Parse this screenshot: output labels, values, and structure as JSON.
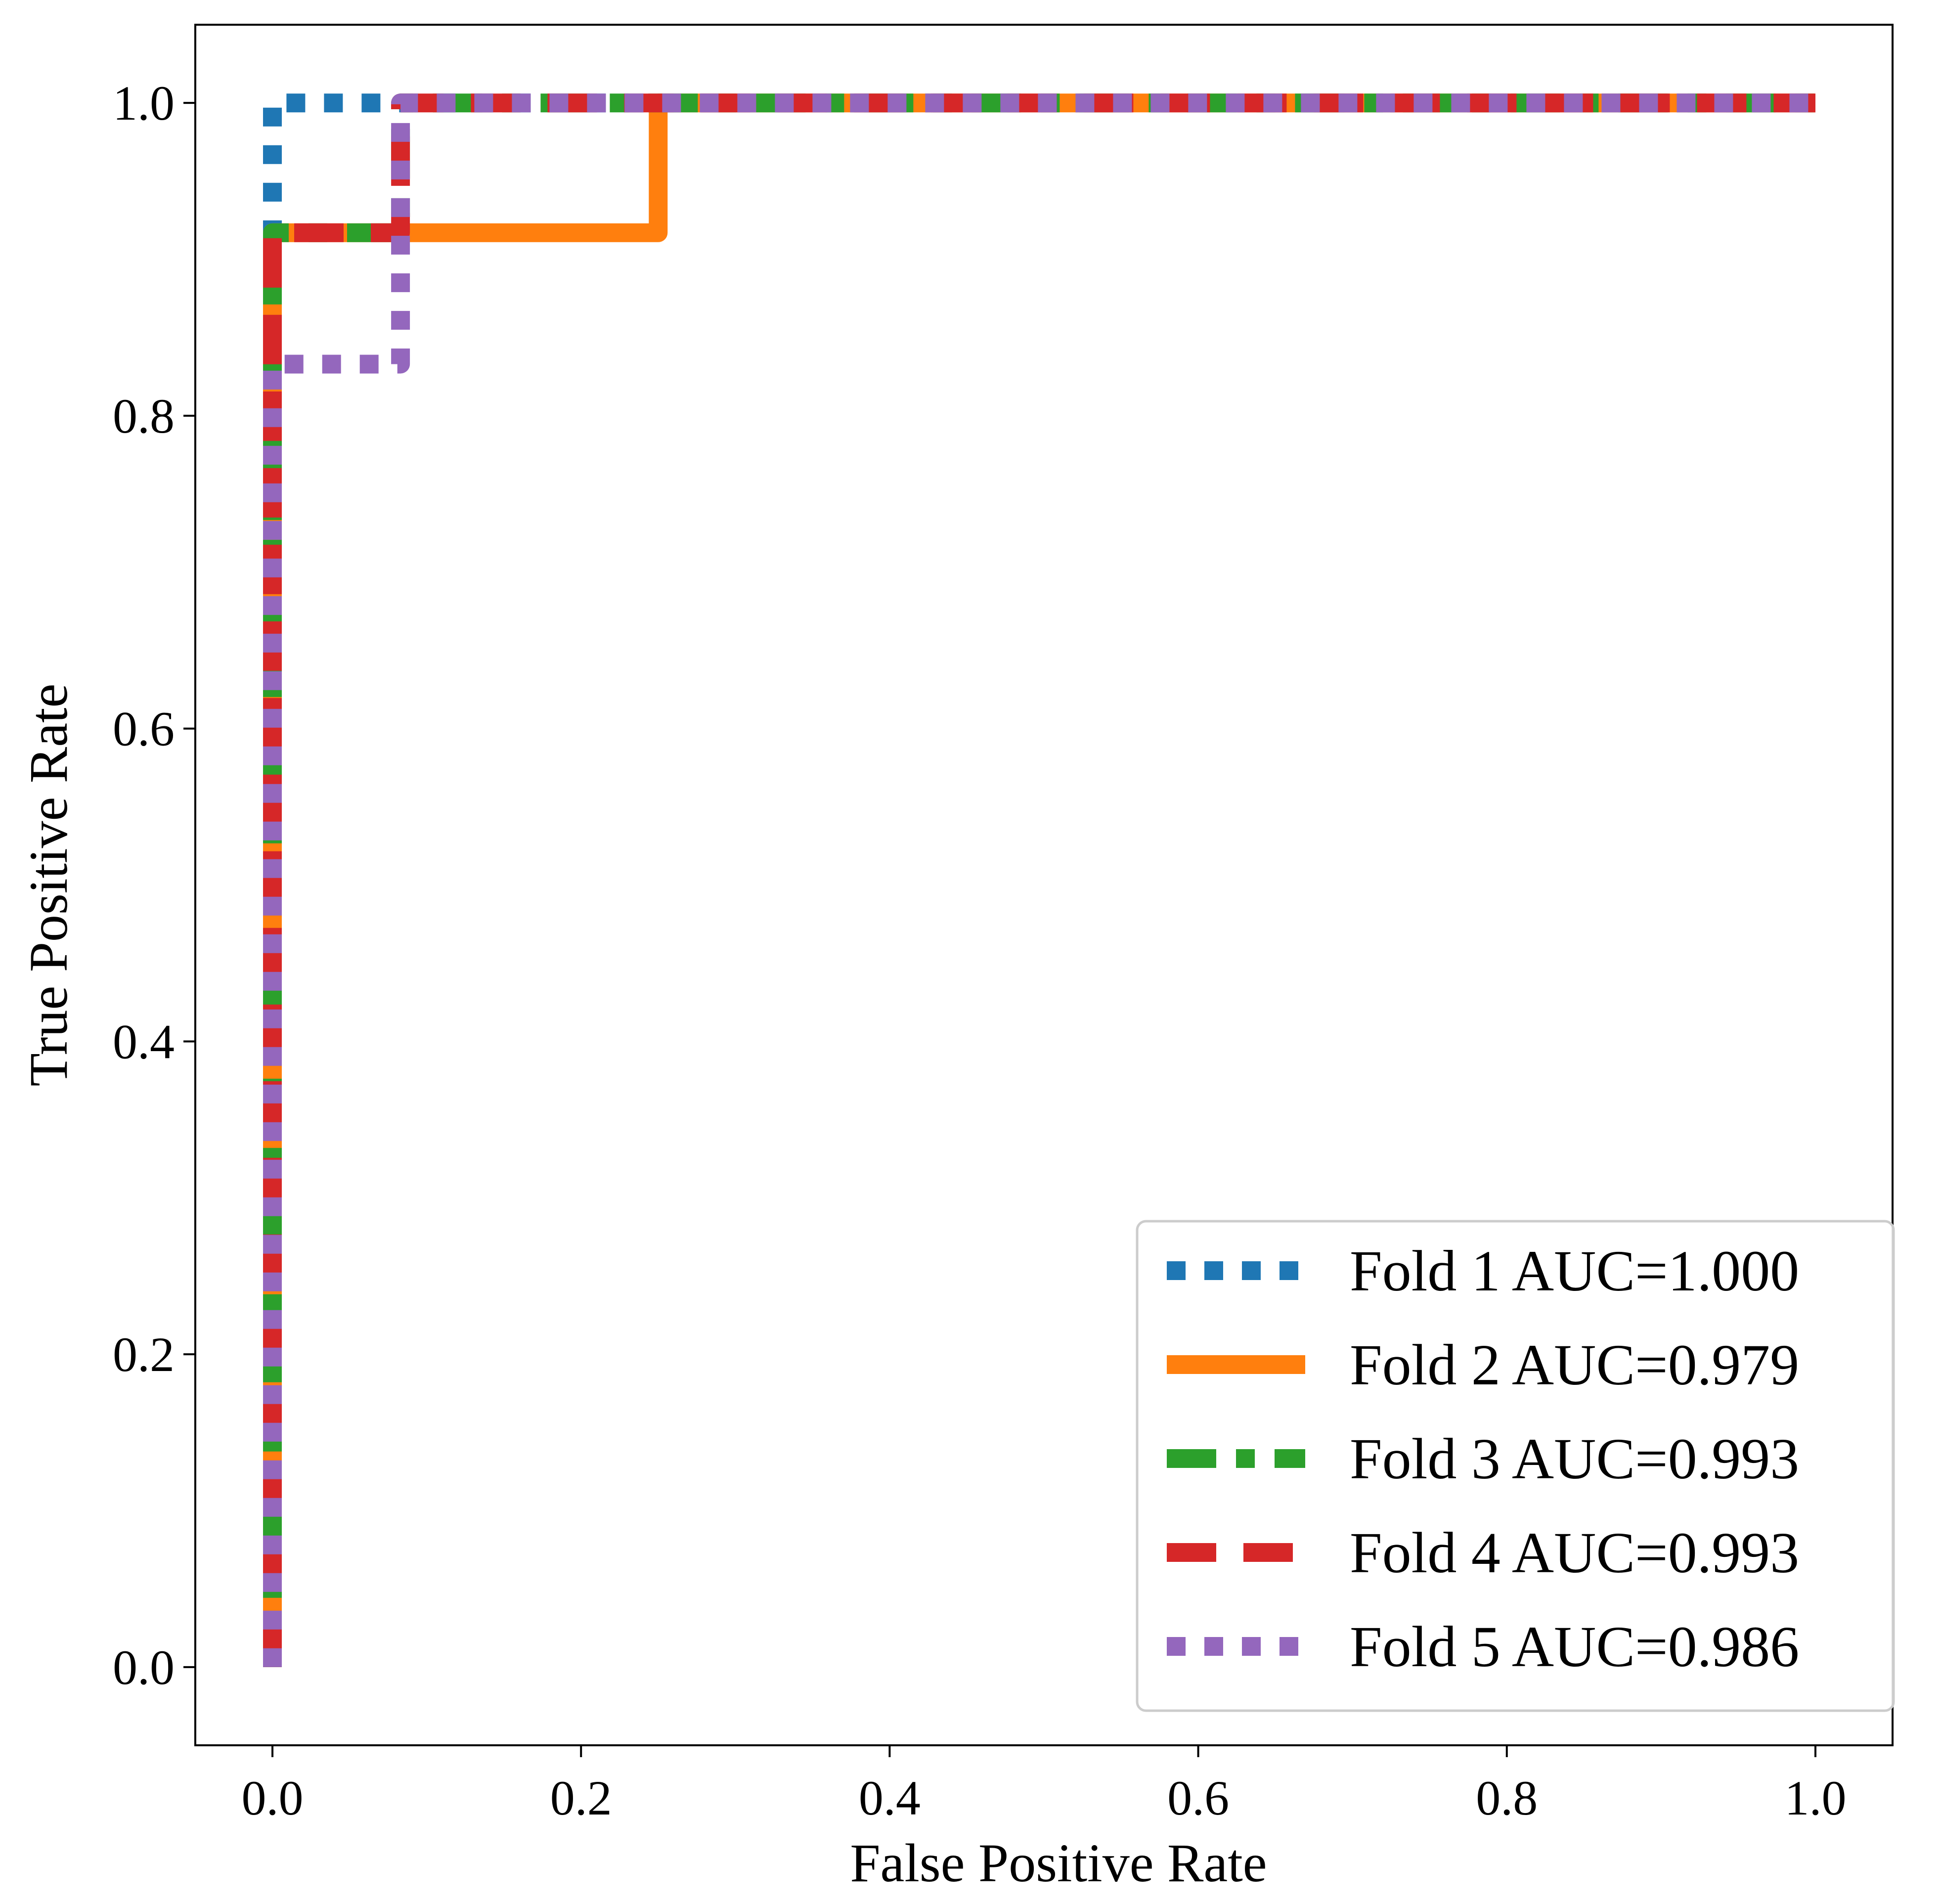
{
  "chart_data": {
    "type": "line",
    "title": "",
    "xlabel": "False Positive Rate",
    "ylabel": "True Positive Rate",
    "xlim": [
      -0.05,
      1.05
    ],
    "ylim": [
      -0.05,
      1.05
    ],
    "xticks": [
      0.0,
      0.2,
      0.4,
      0.6,
      0.8,
      1.0
    ],
    "yticks": [
      0.0,
      0.2,
      0.4,
      0.6,
      0.8,
      1.0
    ],
    "xtick_labels": [
      "0.0",
      "0.2",
      "0.4",
      "0.6",
      "0.8",
      "1.0"
    ],
    "ytick_labels": [
      "0.0",
      "0.2",
      "0.4",
      "0.6",
      "0.8",
      "1.0"
    ],
    "grid": false,
    "legend_position": "lower-right",
    "series": [
      {
        "name": "Fold 1 AUC=1.000",
        "color": "#1f77b4",
        "line_style": "dotted",
        "x": [
          0.0,
          0.0,
          0.0,
          1.0
        ],
        "y": [
          0.0,
          0.0,
          1.0,
          1.0
        ]
      },
      {
        "name": "Fold 2 AUC=0.979",
        "color": "#ff7f0e",
        "line_style": "solid",
        "x": [
          0.0,
          0.0,
          0.25,
          0.25,
          1.0
        ],
        "y": [
          0.0,
          0.917,
          0.917,
          1.0,
          1.0
        ]
      },
      {
        "name": "Fold 3 AUC=0.993",
        "color": "#2ca02c",
        "line_style": "dashdot",
        "x": [
          0.0,
          0.0,
          0.083,
          0.083,
          1.0
        ],
        "y": [
          0.0,
          0.917,
          0.917,
          1.0,
          1.0
        ]
      },
      {
        "name": "Fold 4 AUC=0.993",
        "color": "#d62728",
        "line_style": "dashed",
        "x": [
          0.0,
          0.0,
          0.083,
          0.083,
          1.0
        ],
        "y": [
          0.0,
          0.917,
          0.917,
          1.0,
          1.0
        ]
      },
      {
        "name": "Fold 5 AUC=0.986",
        "color": "#9467bd",
        "line_style": "dotted",
        "x": [
          0.0,
          0.0,
          0.083,
          0.083,
          1.0
        ],
        "y": [
          0.0,
          0.833,
          0.833,
          1.0,
          1.0
        ]
      }
    ]
  }
}
